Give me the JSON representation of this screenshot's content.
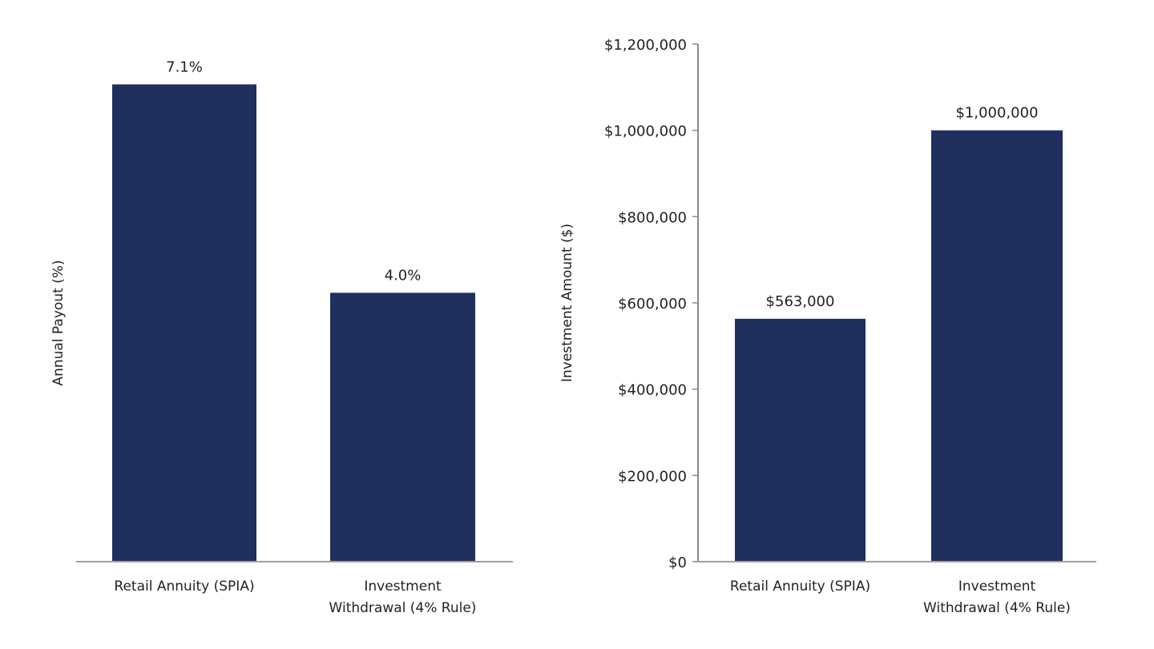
{
  "chart_data": [
    {
      "type": "bar",
      "title": "",
      "xlabel": "",
      "ylabel": "Annual Payout (%)",
      "categories": [
        [
          "Retail Annuity (SPIA)"
        ],
        [
          "Investment",
          "Withdrawal (4% Rule)"
        ]
      ],
      "values": [
        7.1,
        4.0
      ],
      "data_labels": [
        "7.1%",
        "4.0%"
      ],
      "ylim": [
        0,
        7.7
      ],
      "y_ticks_shown": false,
      "grid": false,
      "bar_color": "#1f2f5e"
    },
    {
      "type": "bar",
      "title": "",
      "xlabel": "",
      "ylabel": "Investment Amount ($)",
      "categories": [
        [
          "Retail Annuity (SPIA)"
        ],
        [
          "Investment",
          "Withdrawal (4% Rule)"
        ]
      ],
      "values": [
        563000,
        1000000
      ],
      "data_labels": [
        "$563,000",
        "$1,000,000"
      ],
      "ylim": [
        0,
        1200000
      ],
      "y_ticks": [
        0,
        200000,
        400000,
        600000,
        800000,
        1000000,
        1200000
      ],
      "y_tick_labels": [
        "$0",
        "$200,000",
        "$400,000",
        "$600,000",
        "$800,000",
        "$1,000,000",
        "$1,200,000"
      ],
      "grid": false,
      "bar_color": "#1f2f5e"
    }
  ]
}
